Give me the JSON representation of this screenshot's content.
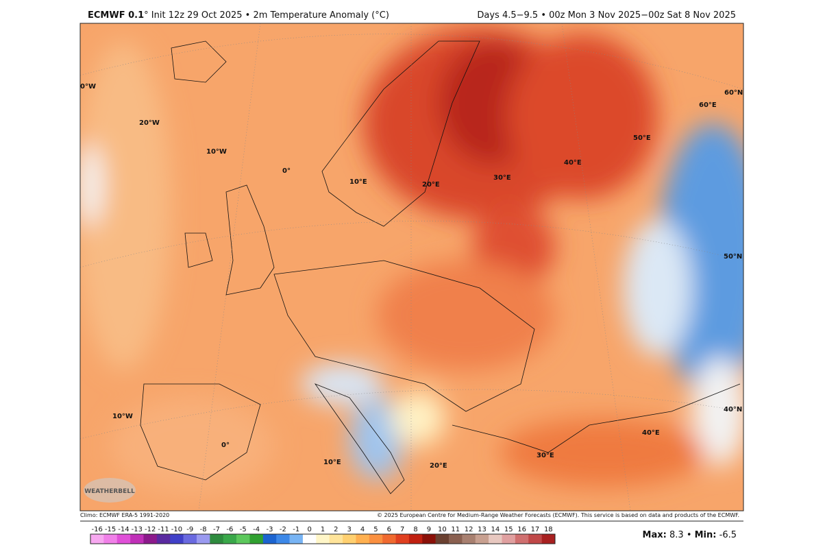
{
  "header": {
    "model": "ECMWF 0.1",
    "left": "° Init 12z 29 Oct 2025 • 2m Temperature Anomaly (°C)",
    "right": "Days 4.5−9.5 • 00z Mon 3 Nov 2025−00z Sat 8 Nov 2025"
  },
  "map": {
    "graticule_labels": [
      "0°W",
      "20°W",
      "10°W",
      "0°",
      "10°E",
      "20°E",
      "30°E",
      "40°E",
      "50°E",
      "60°E",
      "60°N",
      "50°N",
      "10°W",
      "0°",
      "10°E",
      "20°E",
      "30°E",
      "40°E",
      "40°N"
    ],
    "logo": "WEATHERBELL"
  },
  "footer": {
    "left": "Climo: ECMWF ERA-5 1991-2020",
    "right": "© 2025 European Centre for Medium-Range Weather Forecasts (ECMWF). This service is based on data and products of the ECMWF."
  },
  "colorbar": {
    "labels": [
      -16,
      -15,
      -14,
      -13,
      -12,
      -11,
      -10,
      -9,
      -8,
      -7,
      -6,
      -5,
      -4,
      -3,
      -2,
      -1,
      0,
      1,
      2,
      3,
      4,
      5,
      6,
      7,
      8,
      9,
      10,
      11,
      12,
      13,
      14,
      15,
      16,
      17,
      18
    ],
    "colors": [
      "#f7a8f0",
      "#f080e8",
      "#e050d8",
      "#c030b8",
      "#8c1a8c",
      "#5a2aa0",
      "#4040c8",
      "#6a6ae0",
      "#9a9af0",
      "#2e8b3e",
      "#3aa84a",
      "#5cc85c",
      "#30a030",
      "#1c64d0",
      "#3c88e8",
      "#78b4f4",
      "#ffffff",
      "#fff6c8",
      "#ffe49a",
      "#ffd070",
      "#ffb050",
      "#fa9040",
      "#f06a30",
      "#e04020",
      "#c02010",
      "#8a1008",
      "#6a4030",
      "#8a6050",
      "#a88070",
      "#c8a090",
      "#e8c8c0",
      "#e0a0a0",
      "#d07070",
      "#c04848",
      "#a82020"
    ]
  },
  "stats": {
    "max_label": "Max:",
    "max": 8.3,
    "sep": "•",
    "min_label": "Min:",
    "min": -6.5
  }
}
